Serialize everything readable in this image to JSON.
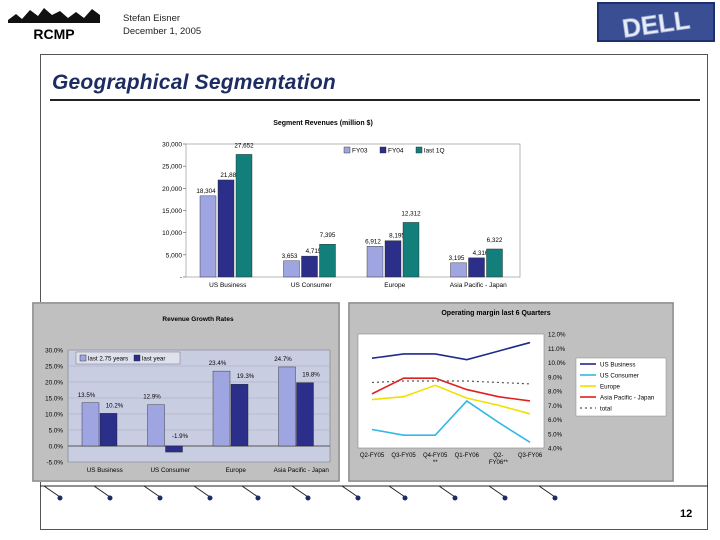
{
  "header": {
    "logo_text": "RCMP",
    "author": "Stefan Eisner",
    "date": "December 1, 2005",
    "brand_logo": "DELL"
  },
  "slide": {
    "title": "Geographical Segmentation",
    "page_number": "12"
  },
  "colors": {
    "title": "#1d2c63",
    "fy03": "#9ea5e0",
    "fy04": "#2b2f8a",
    "last_1q": "#137f7a",
    "chart_bg": "#c9cde2",
    "panel_bg": "#c0c0c0"
  },
  "chart_data": [
    {
      "type": "bar",
      "title": "Segment Revenues (million $)",
      "categories": [
        "US Business",
        "US Consumer",
        "Europe",
        "Asia Pacific - Japan"
      ],
      "series": [
        {
          "name": "FY03",
          "values": [
            18304,
            3653,
            6912,
            3195
          ]
        },
        {
          "name": "FY04",
          "values": [
            21888,
            4715,
            8195,
            4316
          ]
        },
        {
          "name": "last 1Q",
          "values": [
            27652,
            7395,
            12312,
            6322
          ]
        }
      ],
      "value_labels": [
        [
          "18,304",
          "3,653",
          "6,912",
          "3,195"
        ],
        [
          "21,888",
          "4,715",
          "8,195",
          "4,316"
        ],
        [
          "27,652",
          "7,395",
          "12,312",
          "6,322"
        ]
      ],
      "ylim": [
        0,
        30000
      ],
      "yticks": [
        "30,000",
        "25,000",
        "20,000",
        "15,000",
        "10,000",
        "5,000",
        "-"
      ],
      "legend": "top-right"
    },
    {
      "type": "bar",
      "title": "Revenue Growth Rates",
      "categories": [
        "US Business",
        "US Consumer",
        "Europe",
        "Asia Pacific - Japan"
      ],
      "series": [
        {
          "name": "last 2.75 years",
          "values": [
            13.5,
            12.9,
            23.4,
            24.7
          ]
        },
        {
          "name": "last year",
          "values": [
            10.2,
            -1.9,
            19.3,
            19.8
          ]
        }
      ],
      "value_labels": [
        [
          "13.5%",
          "12.9%",
          "23.4%",
          "24.7%"
        ],
        [
          "10.2%",
          "-1.9%",
          "19.3%",
          "19.8%"
        ]
      ],
      "ylim": [
        -5,
        30
      ],
      "yticks": [
        "30.0%",
        "25.0%",
        "20.0%",
        "15.0%",
        "10.0%",
        "5.0%",
        "0.0%",
        "-5.0%"
      ],
      "legend": "top-left"
    },
    {
      "type": "line",
      "title": "Operating margin last 6 Quarters",
      "categories": [
        "Q2-FY05",
        "Q3-FY05",
        "Q4-FY05",
        "Q1-FY06",
        "Q2-FY06**",
        "Q3-FY06"
      ],
      "category_lines": [
        [
          "Q2-FY05",
          ""
        ],
        [
          "Q3-FY05",
          ""
        ],
        [
          "Q4-FY05",
          "**"
        ],
        [
          "Q1-FY06",
          ""
        ],
        [
          "Q2-",
          "FY06**"
        ],
        [
          "Q3-FY06",
          ""
        ]
      ],
      "series": [
        {
          "name": "US Business",
          "values": [
            10.3,
            10.6,
            10.6,
            10.2,
            10.8,
            11.4
          ]
        },
        {
          "name": "US Consumer",
          "values": [
            5.3,
            4.9,
            4.9,
            7.3,
            5.8,
            4.4
          ]
        },
        {
          "name": "Europe",
          "values": [
            7.4,
            7.6,
            8.4,
            7.5,
            7.0,
            6.4
          ]
        },
        {
          "name": "Asia Pacific - Japan",
          "values": [
            7.8,
            8.9,
            8.9,
            8.1,
            7.6,
            7.3
          ]
        },
        {
          "name": "total",
          "values": [
            8.6,
            8.7,
            8.7,
            8.7,
            8.6,
            8.5
          ]
        }
      ],
      "ylim": [
        4,
        12
      ],
      "yticks": [
        "12.0%",
        "11.0%",
        "10.0%",
        "9.0%",
        "8.0%",
        "7.0%",
        "6.0%",
        "5.0%",
        "4.0%"
      ],
      "legend": "right"
    }
  ]
}
